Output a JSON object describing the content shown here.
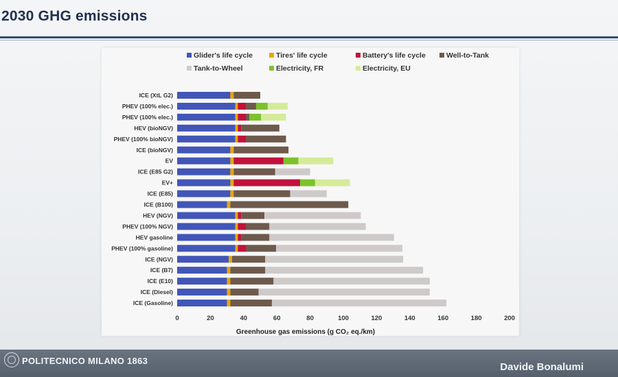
{
  "slide": {
    "title": "2030 GHG emissions",
    "footer_left": "POLITECNICO MILANO 1863",
    "footer_right": "Davide Bonalumi"
  },
  "colors": {
    "Glider's life cycle": "#4256b8",
    "Tires' life cycle": "#e7a611",
    "Battery's life cycle": "#c0123b",
    "Well-to-Tank": "#6e5a4c",
    "Tank-to-Wheel": "#cfcaca",
    "Electricity, FR": "#7cc22a",
    "Electricity, EU": "#d5eb9a"
  },
  "chart_data": {
    "type": "bar",
    "orientation": "horizontal",
    "stacked": true,
    "xlabel": "Greenhouse gas emissions (g CO₂ eq./km)",
    "xlim": [
      0,
      200
    ],
    "xticks": [
      0,
      20,
      40,
      60,
      80,
      100,
      120,
      140,
      160,
      180,
      200
    ],
    "legend_position": "top",
    "categories": [
      "ICE (XtL G2)",
      "PHEV (100% elec.)",
      "PHEV (100% elec.)",
      "HEV (bioNGV)",
      "PHEV (100% bioNGV)",
      "ICE (bioNGV)",
      "EV",
      "ICE (E85 G2)",
      "EV+",
      "ICE (E85)",
      "ICE (B100)",
      "HEV (NGV)",
      "PHEV (100% NGV)",
      "HEV gasoline",
      "PHEV (100% gasoline)",
      "ICE (NGV)",
      "ICE (B7)",
      "ICE (E10)",
      "ICE (Diesel)",
      "ICE (Gasoline)"
    ],
    "series": [
      {
        "name": "Glider's life cycle",
        "values": [
          32,
          35,
          35,
          35,
          35,
          32,
          32,
          32,
          32,
          32,
          30,
          35,
          35,
          35,
          35,
          31,
          30,
          30,
          30,
          30
        ]
      },
      {
        "name": "Tires' life cycle",
        "values": [
          2,
          1.5,
          1.5,
          1.5,
          1.5,
          2,
          2,
          2,
          2,
          2,
          2,
          1.5,
          1.5,
          1.5,
          1.5,
          2,
          2,
          2,
          2,
          2
        ]
      },
      {
        "name": "Battery's life cycle",
        "values": [
          0,
          5,
          5,
          2,
          5,
          0,
          30,
          0,
          40,
          0,
          0,
          2,
          5,
          2,
          5,
          0,
          0,
          0,
          0,
          0
        ]
      },
      {
        "name": "Well-to-Tank",
        "values": [
          16,
          6,
          2,
          23,
          24,
          33,
          0,
          25,
          0,
          34,
          71,
          14,
          14,
          17,
          18,
          20,
          21,
          26,
          17,
          25
        ]
      },
      {
        "name": "Tank-to-Wheel",
        "values": [
          0,
          0,
          0,
          0,
          0,
          0,
          0,
          21,
          0,
          22,
          0,
          58,
          58,
          75,
          76,
          83,
          95,
          94,
          103,
          105
        ]
      },
      {
        "name": "Electricity, FR",
        "values": [
          0,
          7,
          7,
          0,
          0,
          0,
          9,
          0,
          9,
          0,
          0,
          0,
          0,
          0,
          0,
          0,
          0,
          0,
          0,
          0
        ]
      },
      {
        "name": "Electricity, EU",
        "values": [
          0,
          12,
          15,
          0,
          0,
          0,
          21,
          0,
          21,
          0,
          0,
          0,
          0,
          0,
          0,
          0,
          0,
          0,
          0,
          0
        ]
      }
    ]
  }
}
